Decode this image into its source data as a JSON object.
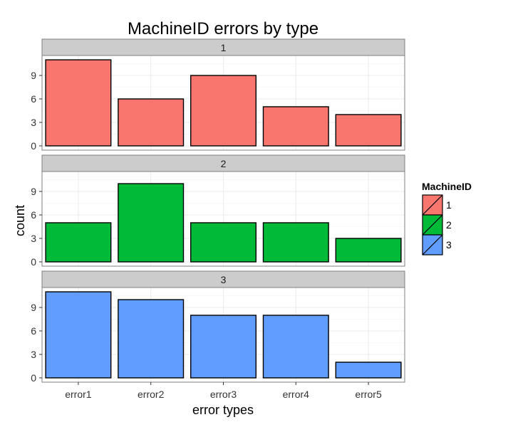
{
  "chart_data": {
    "type": "bar",
    "title": "MachineID errors by type",
    "xlabel": "error types",
    "ylabel": "count",
    "categories": [
      "error1",
      "error2",
      "error3",
      "error4",
      "error5"
    ],
    "facets": [
      {
        "label": "1",
        "series": "1",
        "values": [
          11,
          6,
          9,
          5,
          4
        ]
      },
      {
        "label": "2",
        "series": "2",
        "values": [
          5,
          10,
          5,
          5,
          3
        ]
      },
      {
        "label": "3",
        "series": "3",
        "values": [
          11,
          10,
          8,
          8,
          2
        ]
      }
    ],
    "yticks": [
      0,
      3,
      6,
      9
    ],
    "ylim": [
      -0.55,
      11.55
    ],
    "grid": true,
    "legend": {
      "title": "MachineID",
      "position": "right",
      "entries": [
        {
          "label": "1",
          "color": "#F8766D"
        },
        {
          "label": "2",
          "color": "#00BA38"
        },
        {
          "label": "3",
          "color": "#619CFF"
        }
      ]
    },
    "colors": {
      "1": "#F8766D",
      "2": "#00BA38",
      "3": "#619CFF",
      "strip": "#CCCCCC",
      "panel_border": "#7F7F7F",
      "grid": "#EBEBEB"
    }
  }
}
